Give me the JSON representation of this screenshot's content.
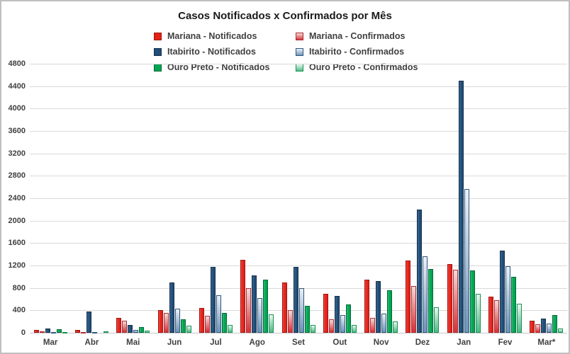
{
  "title": "Casos Notificados x Confirmados por Mês",
  "chart_data": {
    "type": "bar",
    "title": "Casos Notificados x Confirmados por Mês",
    "xlabel": "",
    "ylabel": "",
    "ylim": [
      0,
      4800
    ],
    "ytick_step": 400,
    "grid": true,
    "legend_position": "top-center-two-columns",
    "categories": [
      "Mar",
      "Abr",
      "Mai",
      "Jun",
      "Jul",
      "Ago",
      "Set",
      "Out",
      "Nov",
      "Dez",
      "Jan",
      "Fev",
      "Mar*"
    ],
    "series": [
      {
        "name": "Mariana - Notificados",
        "style": "solid",
        "color": "#e32119",
        "color_top": "#ef4a42",
        "border": "#a01410",
        "values": [
          45,
          50,
          270,
          410,
          440,
          1300,
          900,
          700,
          950,
          1290,
          1220,
          650,
          210
        ]
      },
      {
        "name": "Mariana - Confirmados",
        "style": "gradient",
        "color": "#d6383e",
        "color_top": "#f2dcdc",
        "border": "#b02a30",
        "values": [
          20,
          10,
          210,
          350,
          300,
          790,
          410,
          235,
          260,
          830,
          1120,
          580,
          150
        ]
      },
      {
        "name": "Itabirito - Notificados",
        "style": "solid",
        "color": "#1f4e79",
        "color_top": "#41688e",
        "border": "#142f49",
        "values": [
          75,
          380,
          135,
          900,
          1180,
          1020,
          1180,
          655,
          920,
          2200,
          4500,
          1470,
          250
        ]
      },
      {
        "name": "Itabirito - Confirmados",
        "style": "gradient",
        "color": "#7297bb",
        "color_top": "#ecf1f8",
        "border": "#2e567c",
        "values": [
          15,
          10,
          50,
          430,
          670,
          620,
          790,
          320,
          345,
          1360,
          2560,
          1190,
          160
        ]
      },
      {
        "name": "Ouro Preto - Notificados",
        "style": "solid",
        "color": "#00a550",
        "color_top": "#2bbb70",
        "border": "#00683a",
        "values": [
          65,
          0,
          100,
          240,
          360,
          950,
          480,
          500,
          760,
          1140,
          1110,
          1000,
          310
        ]
      },
      {
        "name": "Ouro Preto - Confirmados",
        "style": "gradient",
        "color": "#56bb8b",
        "color_top": "#eaf7f0",
        "border": "#159253",
        "values": [
          10,
          30,
          40,
          125,
          135,
          330,
          140,
          135,
          200,
          450,
          700,
          520,
          80
        ]
      }
    ]
  }
}
